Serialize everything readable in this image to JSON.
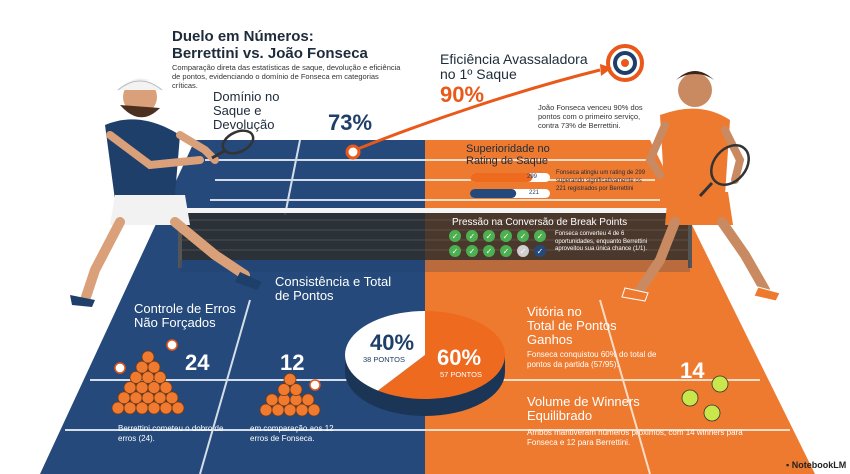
{
  "header": {
    "title_line1": "Duelo em Números:",
    "title_line2": "Berrettini vs. João Fonseca",
    "subtitle": "Comparação direta das estatísticas de saque, devolução e eficiência de pontos, evidenciando o domínio de Fonseca em categorias críticas."
  },
  "serve_efficiency": {
    "heading_line1": "Eficiência Avassaladora",
    "heading_line2": "no 1º Saque",
    "fonseca_pct": "90%",
    "berrettini_pct": "73%",
    "description": "João Fonseca venceu 90% dos pontos com o primeiro serviço, contra 73% de Berrettini."
  },
  "dominance": {
    "heading_line1": "Domínio no",
    "heading_line2": "Saque e",
    "heading_line3": "Devolução"
  },
  "serve_rating": {
    "heading_line1": "Superioridade no",
    "heading_line2": "Rating de Saque",
    "fonseca_value": "299",
    "berrettini_value": "221",
    "fonseca_fraction": 1.0,
    "berrettini_fraction": 0.74,
    "description": "Fonseca atingiu um rating de 299 superando significativamente os 221 registrados por Berrettini"
  },
  "break_points": {
    "heading": "Pressão na Conversão de Break Points",
    "fonseca_converted": 4,
    "fonseca_opportunities": 6,
    "description": "Fonseca converteu 4 de 6 oportunidades, enquanto Berrettini aproveitou sua única chance (1/1)."
  },
  "errors": {
    "heading_line1": "Controle de Erros",
    "heading_line2": "Não Forçados",
    "berrettini_value": "24",
    "fonseca_value": "12",
    "berrettini_desc": "Berrettini cometeu o dobro de erros (24).",
    "fonseca_desc": "em comparação aos 12 erros de Fonseca."
  },
  "consistency": {
    "heading_line1": "Consistência e Total",
    "heading_line2": "de Pontos",
    "berrettini_pct": "40%",
    "berrettini_points": "38 PONTOS",
    "fonseca_pct": "60%",
    "fonseca_points": "57 PONTOS",
    "berrettini_fraction": 0.4,
    "fonseca_fraction": 0.6
  },
  "total_points": {
    "heading_line1": "Vitória no",
    "heading_line2": "Total de Pontos",
    "heading_line3": "Ganhos",
    "description": "Fonseca conquistou 60% do total de pontos da partida (57/95)."
  },
  "winners": {
    "value": "14",
    "heading_line1": "Volume de Winners",
    "heading_line2": "Equilibrado",
    "description": "Ambos mantiveram números próximos, com 14 winners para Fonseca e 12 para Berrettini."
  },
  "branding": {
    "logo_text": "NotebookLM"
  },
  "colors": {
    "navy": "#1f3f6b",
    "orange": "#e8591a",
    "court_navy": "#24497a",
    "court_orange": "#ee7a2f"
  }
}
